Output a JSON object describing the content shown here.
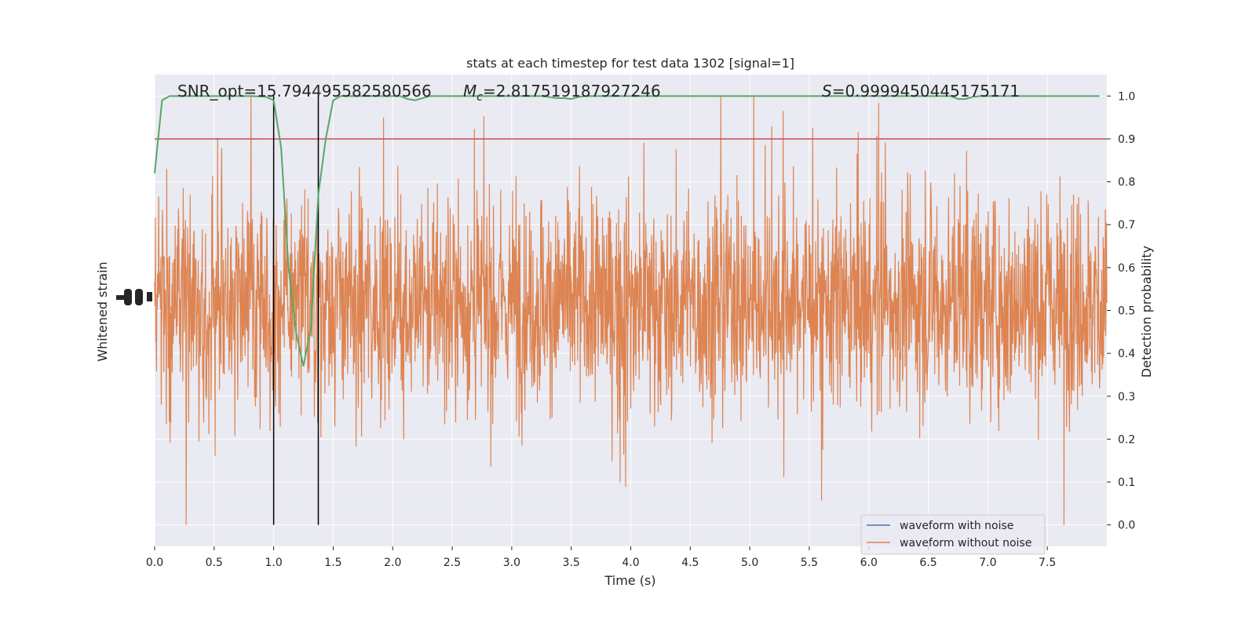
{
  "chart_data": {
    "type": "line",
    "title": "stats at each timestep for test data 1302 [signal=1]",
    "xlabel": "Time (s)",
    "ylabel_left": "Whitened strain",
    "ylabel_right": "Detection probability",
    "xlim": [
      0.0,
      8.0
    ],
    "xticks": [
      "0.0",
      "0.5",
      "1.0",
      "1.5",
      "2.0",
      "2.5",
      "3.0",
      "3.5",
      "4.0",
      "4.5",
      "5.0",
      "5.5",
      "6.0",
      "6.5",
      "7.0",
      "7.5"
    ],
    "ylim_right": [
      -0.05,
      1.05
    ],
    "yticks_right": [
      "0.0",
      "0.1",
      "0.2",
      "0.3",
      "0.4",
      "0.5",
      "0.6",
      "0.7",
      "0.8",
      "0.9",
      "1.0"
    ],
    "grid": true,
    "legend_position": "lower-right",
    "annotations": {
      "snr": "SNR_opt=15.794495582580566",
      "mc_symbol": "M",
      "mc_sub": "c",
      "mc_value": "=2.817519187927246",
      "s_symbol": "S",
      "s_value": "=0.9999450445175171"
    },
    "threshold": 0.9,
    "vlines": [
      1.0,
      1.375
    ],
    "series": [
      {
        "name": "waveform with noise",
        "color": "#4c72b0"
      },
      {
        "name": "waveform without noise",
        "color": "#dd8452"
      },
      {
        "color": "#55a868",
        "x": [
          0.0,
          0.0625,
          0.125,
          0.1875,
          0.25,
          0.3125,
          0.375,
          0.4375,
          0.5,
          0.5625,
          0.625,
          0.6875,
          0.75,
          0.8125,
          0.875,
          0.9375,
          1.0,
          1.0625,
          1.125,
          1.1875,
          1.25,
          1.3125,
          1.375,
          1.4375,
          1.5,
          1.5625,
          1.625,
          1.6875,
          1.75,
          1.8125,
          1.875,
          1.9375,
          2.0,
          2.0625,
          2.125,
          2.1875,
          2.25,
          2.3125,
          2.375,
          2.4375,
          2.5,
          2.5625,
          2.625,
          2.6875,
          2.75,
          2.8125,
          2.875,
          2.9375,
          3.0,
          3.0625,
          3.125,
          3.1875,
          3.25,
          3.3125,
          3.375,
          3.4375,
          3.5,
          3.5625,
          3.625,
          3.6875,
          3.75,
          3.8125,
          3.875,
          3.9375,
          4.0,
          4.0625,
          4.125,
          4.1875,
          4.25,
          4.3125,
          4.375,
          4.4375,
          4.5,
          4.5625,
          4.625,
          4.6875,
          4.75,
          4.8125,
          4.875,
          4.9375,
          5.0,
          5.0625,
          5.125,
          5.1875,
          5.25,
          5.3125,
          5.375,
          5.4375,
          5.5,
          5.5625,
          5.625,
          5.6875,
          5.75,
          5.8125,
          5.875,
          5.9375,
          6.0,
          6.0625,
          6.125,
          6.1875,
          6.25,
          6.3125,
          6.375,
          6.4375,
          6.5,
          6.5625,
          6.625,
          6.6875,
          6.75,
          6.8125,
          6.875,
          6.9375,
          7.0,
          7.0625,
          7.125,
          7.1875,
          7.25,
          7.3125,
          7.375,
          7.4375,
          7.5,
          7.5625,
          7.625,
          7.6875,
          7.75,
          7.8125,
          7.875,
          7.9375
        ],
        "y": [
          0.82,
          0.99,
          1.0,
          1.0,
          1.0,
          1.0,
          1.0,
          1.0,
          1.0,
          1.0,
          1.0,
          1.0,
          1.0,
          1.0,
          0.999,
          0.998,
          0.99,
          0.88,
          0.6,
          0.45,
          0.37,
          0.46,
          0.77,
          0.9,
          0.99,
          1.0,
          1.0,
          1.0,
          1.0,
          1.0,
          1.0,
          1.0,
          1.0,
          1.0,
          0.993,
          0.99,
          0.995,
          1.0,
          1.0,
          1.0,
          1.0,
          1.0,
          1.0,
          1.0,
          1.0,
          1.0,
          1.0,
          1.0,
          1.0,
          1.0,
          1.0,
          1.0,
          1.0,
          0.998,
          0.995,
          0.995,
          0.993,
          0.998,
          1.0,
          1.0,
          1.0,
          1.0,
          1.0,
          1.0,
          1.0,
          1.0,
          1.0,
          1.0,
          1.0,
          1.0,
          1.0,
          1.0,
          1.0,
          1.0,
          1.0,
          1.0,
          1.0,
          1.0,
          1.0,
          1.0,
          1.0,
          1.0,
          1.0,
          1.0,
          1.0,
          1.0,
          1.0,
          1.0,
          1.0,
          1.0,
          1.0,
          1.0,
          1.0,
          1.0,
          1.0,
          1.0,
          1.0,
          1.0,
          1.0,
          1.0,
          1.0,
          1.0,
          1.0,
          1.0,
          1.0,
          1.0,
          1.0,
          1.0,
          0.993,
          0.993,
          0.998,
          1.0,
          1.0,
          1.0,
          1.0,
          1.0,
          1.0,
          1.0,
          1.0,
          1.0,
          1.0,
          1.0,
          1.0,
          1.0,
          1.0,
          1.0,
          1.0,
          1.0
        ]
      }
    ],
    "threshold_color": "#c44e52",
    "vline_color": "#000000",
    "plot_bg": "#eaeaf2",
    "grid_color": "#ffffff"
  }
}
